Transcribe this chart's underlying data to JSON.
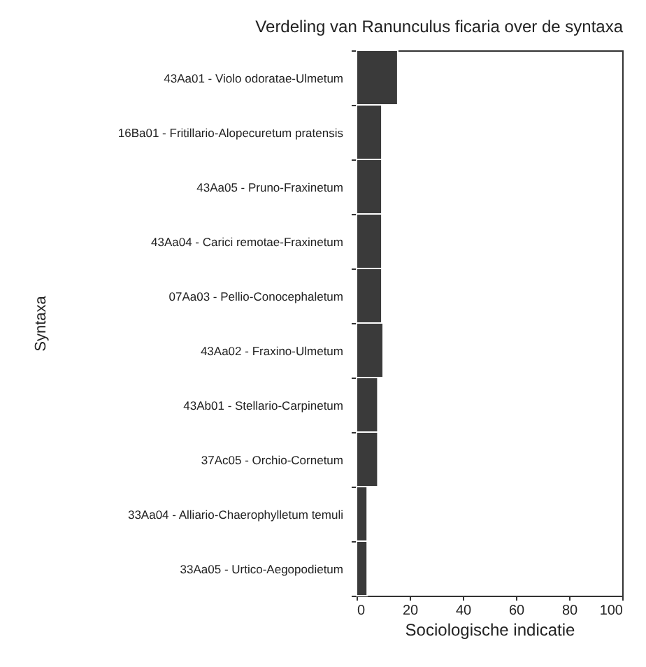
{
  "chart_data": {
    "type": "bar",
    "orientation": "horizontal",
    "title": "Verdeling van Ranunculus ficaria over de syntaxa",
    "xlabel": "Sociologische indicatie",
    "ylabel": "Syntaxa",
    "categories": [
      "43Aa01 - Violo odoratae-Ulmetum",
      "16Ba01 - Fritillario-Alopecuretum pratensis",
      "43Aa05 - Pruno-Fraxinetum",
      "43Aa04 - Carici remotae-Fraxinetum",
      "07Aa03 - Pellio-Conocephaletum",
      "43Aa02 - Fraxino-Ulmetum",
      "43Ab01 - Stellario-Carpinetum",
      "37Ac05 - Orchio-Cornetum",
      "33Aa04 - Alliario-Chaerophylletum temuli",
      "33Aa05 - Urtico-Aegopodietum"
    ],
    "values": [
      15.5,
      9.5,
      9.5,
      9.5,
      9.5,
      10,
      8,
      8,
      4,
      4
    ],
    "color": "#3a3a3a",
    "xlim": [
      0,
      100
    ],
    "xticks": [
      0,
      20,
      40,
      60,
      80,
      100
    ],
    "grid": false
  }
}
